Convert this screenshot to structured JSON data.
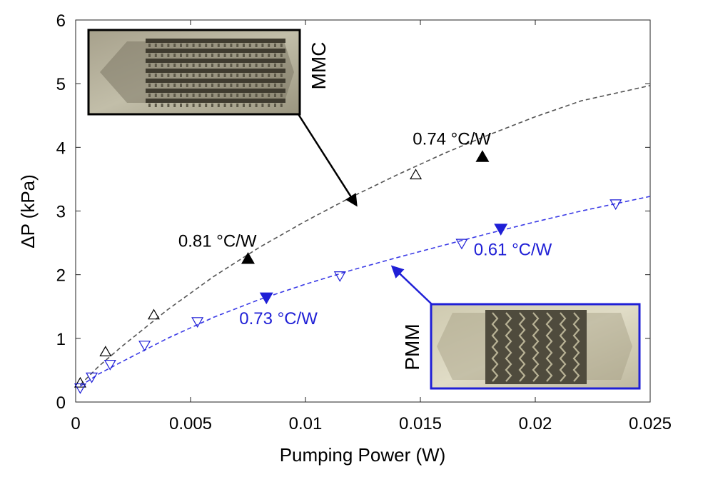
{
  "chart_data": {
    "type": "scatter",
    "xlabel": "Pumping Power (W)",
    "ylabel": "ΔP (kPa)",
    "xlim": [
      0,
      0.025
    ],
    "ylim": [
      0,
      6
    ],
    "xticks": [
      0,
      0.005,
      0.01,
      0.015,
      0.02,
      0.025
    ],
    "xtick_labels": [
      "0",
      "0.005",
      "0.01",
      "0.015",
      "0.02",
      "0.025"
    ],
    "yticks": [
      0,
      1,
      2,
      3,
      4,
      5,
      6
    ],
    "ytick_labels": [
      "0",
      "1",
      "2",
      "3",
      "4",
      "5",
      "6"
    ],
    "grid": false,
    "series": [
      {
        "name": "MMC",
        "color": "#000000",
        "fit_color": "#555555",
        "marker": "open-triangle-up",
        "points": [
          [
            0.0002,
            0.29
          ],
          [
            0.0013,
            0.78
          ],
          [
            0.0034,
            1.36
          ],
          [
            0.0148,
            3.56
          ]
        ],
        "highlight_points": [
          [
            0.0075,
            2.24
          ],
          [
            0.0177,
            3.84
          ]
        ],
        "highlight_marker": "filled-triangle-up",
        "fit": [
          [
            0.0002,
            0.27
          ],
          [
            0.001,
            0.56
          ],
          [
            0.002,
            0.87
          ],
          [
            0.004,
            1.45
          ],
          [
            0.006,
            1.97
          ],
          [
            0.008,
            2.43
          ],
          [
            0.01,
            2.84
          ],
          [
            0.012,
            3.22
          ],
          [
            0.014,
            3.57
          ],
          [
            0.016,
            3.9
          ],
          [
            0.018,
            4.2
          ],
          [
            0.02,
            4.48
          ],
          [
            0.022,
            4.73
          ],
          [
            0.025,
            4.97
          ]
        ]
      },
      {
        "name": "PMM",
        "color": "#1f1fd6",
        "fit_color": "#3a3ae6",
        "marker": "open-triangle-down",
        "points": [
          [
            0.0002,
            0.23
          ],
          [
            0.0007,
            0.4
          ],
          [
            0.0015,
            0.6
          ],
          [
            0.003,
            0.9
          ],
          [
            0.0053,
            1.27
          ],
          [
            0.0115,
            1.99
          ],
          [
            0.0168,
            2.5
          ],
          [
            0.0235,
            3.12
          ]
        ],
        "highlight_points": [
          [
            0.0083,
            1.65
          ],
          [
            0.0185,
            2.73
          ]
        ],
        "highlight_marker": "filled-triangle-down",
        "fit": [
          [
            0.0002,
            0.25
          ],
          [
            0.001,
            0.44
          ],
          [
            0.002,
            0.63
          ],
          [
            0.004,
            1.0
          ],
          [
            0.006,
            1.33
          ],
          [
            0.008,
            1.61
          ],
          [
            0.01,
            1.85
          ],
          [
            0.012,
            2.07
          ],
          [
            0.014,
            2.27
          ],
          [
            0.016,
            2.46
          ],
          [
            0.018,
            2.65
          ],
          [
            0.02,
            2.83
          ],
          [
            0.022,
            3.0
          ],
          [
            0.025,
            3.23
          ]
        ]
      }
    ],
    "annotations": [
      {
        "text": "0.81 °C/W",
        "color": "#000000",
        "x": 0.0075,
        "y": 2.24,
        "placement": "above-left"
      },
      {
        "text": "0.74 °C/W",
        "color": "#000000",
        "x": 0.0177,
        "y": 3.84,
        "placement": "above-left"
      },
      {
        "text": "0.73 °C/W",
        "color": "#1f1fd6",
        "x": 0.0083,
        "y": 1.65,
        "placement": "below-right"
      },
      {
        "text": "0.61 °C/W",
        "color": "#1f1fd6",
        "x": 0.0185,
        "y": 2.73,
        "placement": "below-right"
      }
    ],
    "insets": [
      {
        "label": "MMC",
        "border_color": "#000000",
        "style": "straight-channels",
        "arrow_to": [
          0.0122,
          3.1
        ]
      },
      {
        "label": "PMM",
        "border_color": "#1f1fd6",
        "style": "wavy-channels",
        "arrow_to": [
          0.0138,
          2.12
        ]
      }
    ]
  }
}
